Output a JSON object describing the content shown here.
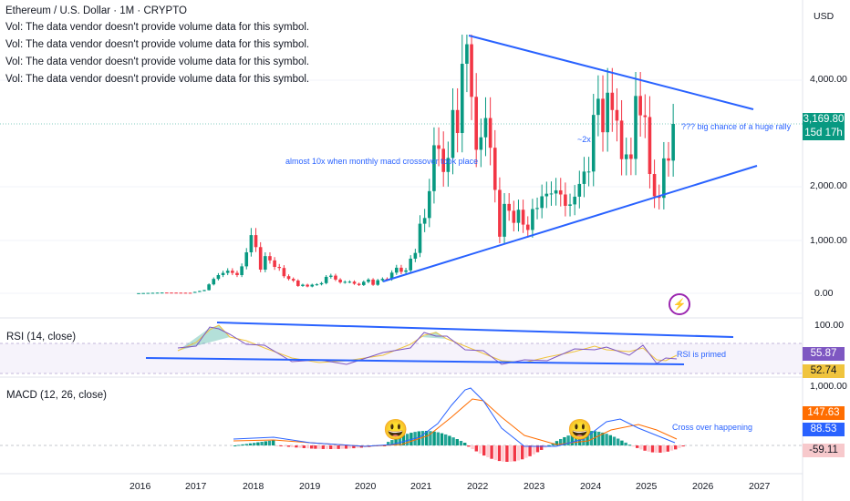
{
  "header": {
    "title": "Ethereum / U.S. Dollar · 1M · CRYPTO",
    "vol_lines": [
      "Vol: The data vendor doesn't provide volume data for this symbol.",
      "Vol: The data vendor doesn't provide volume data for this symbol.",
      "Vol: The data vendor doesn't provide volume data for this symbol.",
      "Vol: The data vendor doesn't provide volume data for this symbol."
    ]
  },
  "currency": "USD",
  "price_axis": {
    "ticks": [
      "4,000.00",
      "2,000.00",
      "1,000.00",
      "0.00"
    ]
  },
  "price_badge": {
    "value": "3,169.80",
    "countdown": "15d 17h",
    "color": "#089981"
  },
  "annotations": {
    "rally": "??? big chance of a huge rally",
    "two_x": "~2x",
    "ten_x": "almost 10x when monthly macd crossover took place",
    "rsi_primed": "RSI is primed",
    "cross": "Cross over happening"
  },
  "rsi": {
    "label": "RSI (14, close)",
    "ticks": [
      "100.00"
    ],
    "value": "55.87",
    "ma_value": "52.74",
    "line_color": "#7e57c2",
    "ma_color": "#f0c43e"
  },
  "macd": {
    "label": "MACD (12, 26, close)",
    "ticks": [
      "1,000.00"
    ],
    "signal": "147.63",
    "macd": "88.53",
    "hist": "-59.11",
    "macd_color": "#2962ff",
    "signal_color": "#ff6d00"
  },
  "x_axis": {
    "ticks": [
      "2016",
      "2017",
      "2018",
      "2019",
      "2020",
      "2021",
      "2022",
      "2023",
      "2024",
      "2025",
      "2026",
      "2027"
    ]
  },
  "emojis": {
    "first": "😃",
    "second": "😃"
  },
  "chart_data": {
    "type": "candlestick",
    "timeframe": "1M",
    "price_scale": "log",
    "x_range": [
      2016,
      2027
    ],
    "y_ticks": [
      0,
      1000,
      2000,
      4000
    ],
    "key_points": [
      {
        "date": "2017-12",
        "close": 750
      },
      {
        "date": "2018-01",
        "close": 1100
      },
      {
        "date": "2021-05",
        "close": 2700
      },
      {
        "date": "2021-11",
        "close": 4600
      },
      {
        "date": "2022-06",
        "close": 1000
      },
      {
        "date": "2024-03",
        "close": 3600
      },
      {
        "date": "2024-12",
        "close": 3300
      },
      {
        "date": "2025-04",
        "close": 1800
      },
      {
        "date": "2025-07",
        "close": 3169.8
      }
    ],
    "last_close": 3169.8,
    "rsi_last": 55.87,
    "rsi_ma_last": 52.74,
    "macd_last": 88.53,
    "signal_last": 147.63,
    "hist_last": -59.11
  }
}
